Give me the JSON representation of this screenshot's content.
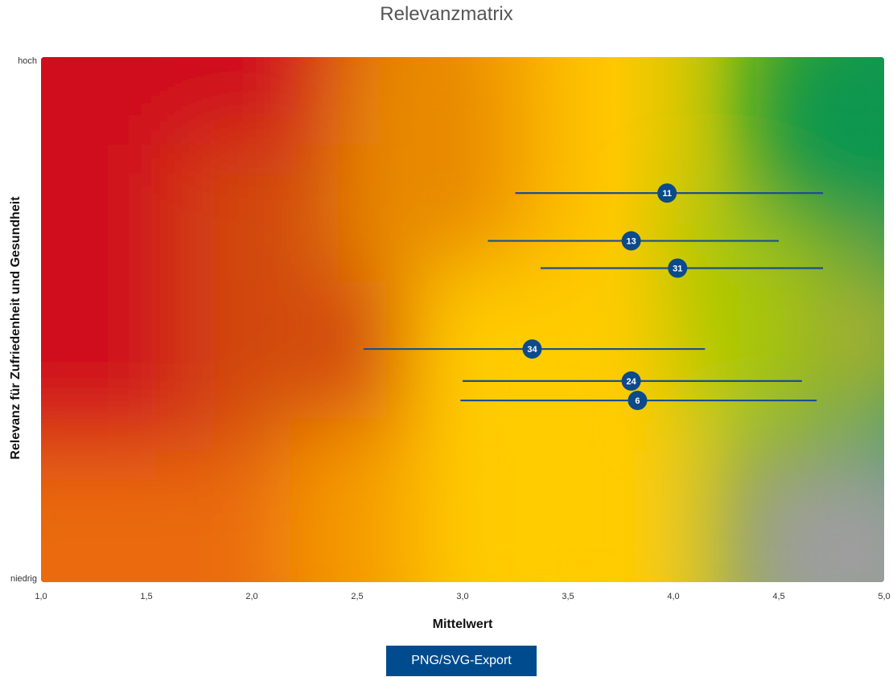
{
  "chart_data": {
    "type": "scatter",
    "title": "Relevanzmatrix",
    "xlabel": "Mittelwert",
    "ylabel": "Relevanz für Zufriedenheit und Gesundheit",
    "xlim": [
      1.0,
      5.0
    ],
    "ylim": [
      0,
      1
    ],
    "x_ticks": [
      "1,0",
      "1,5",
      "2,0",
      "2,5",
      "3,0",
      "3,5",
      "4,0",
      "4,5",
      "5,0"
    ],
    "y_tick_labels": {
      "top": "hoch",
      "bottom": "niedrig"
    },
    "grid": false,
    "background": "heatmap red→orange→yellow→green (top-right), grey (bottom-right)",
    "points": [
      {
        "label": "11",
        "x": 3.97,
        "x_low": 3.25,
        "x_high": 4.71,
        "y": 0.741
      },
      {
        "label": "13",
        "x": 3.8,
        "x_low": 3.12,
        "x_high": 4.5,
        "y": 0.65
      },
      {
        "label": "31",
        "x": 4.02,
        "x_low": 3.37,
        "x_high": 4.71,
        "y": 0.598
      },
      {
        "label": "34",
        "x": 3.33,
        "x_low": 2.53,
        "x_high": 4.15,
        "y": 0.444
      },
      {
        "label": "24",
        "x": 3.8,
        "x_low": 3.0,
        "x_high": 4.61,
        "y": 0.383
      },
      {
        "label": "6",
        "x": 3.83,
        "x_low": 2.99,
        "x_high": 4.68,
        "y": 0.346
      }
    ]
  },
  "colors": {
    "marker": "#0b4a8b",
    "errorbar": "#1d4f8c",
    "button": "#004b8d"
  },
  "export_button_label": "PNG/SVG-Export"
}
